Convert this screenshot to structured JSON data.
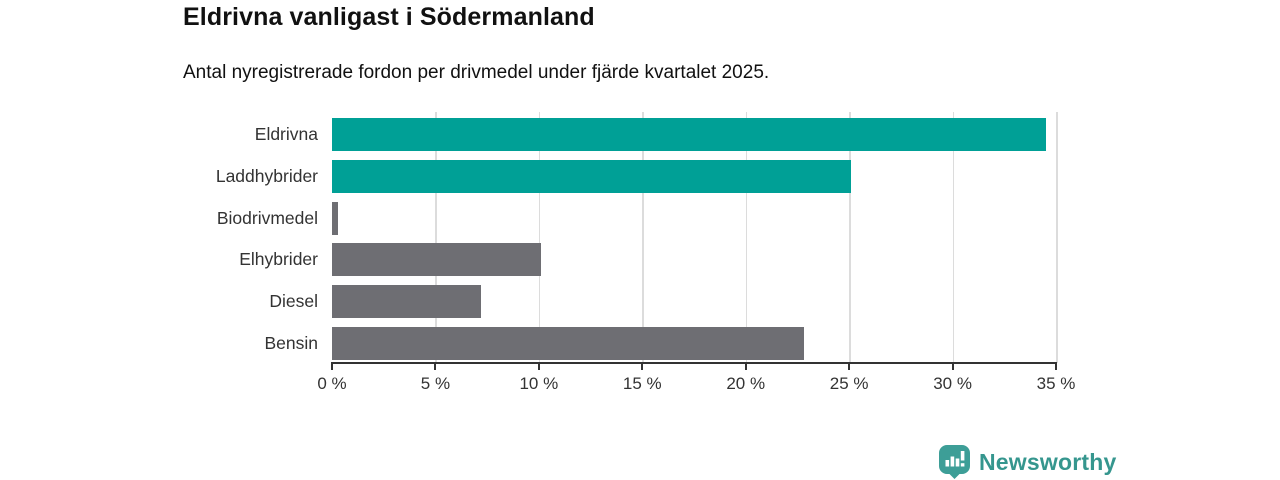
{
  "chart_data": {
    "type": "bar",
    "orientation": "horizontal",
    "title": "Eldrivna vanligast i Södermanland",
    "subtitle": "Antal nyregistrerade fordon per drivmedel under fjärde kvartalet 2025.",
    "categories": [
      "Eldrivna",
      "Laddhybrider",
      "Biodrivmedel",
      "Elhybrider",
      "Diesel",
      "Bensin"
    ],
    "values": [
      34.5,
      25.1,
      0.3,
      10.1,
      7.2,
      22.8
    ],
    "unit": "%",
    "bar_colors": [
      "#00a096",
      "#00a096",
      "#6e6e73",
      "#6e6e73",
      "#6e6e73",
      "#6e6e73"
    ],
    "xlim": [
      0,
      35
    ],
    "x_ticks": [
      0,
      5,
      10,
      15,
      20,
      25,
      30,
      35
    ],
    "x_tick_labels": [
      "0 %",
      "5 %",
      "10 %",
      "15 %",
      "20 %",
      "25 %",
      "30 %",
      "35 %"
    ],
    "grid": "vertical-gridlines-on",
    "legend": "none"
  },
  "branding": {
    "logo_text": "Newsworthy",
    "logo_icon": "bar-chart-speech-bubble"
  },
  "colors": {
    "accent_teal": "#00a096",
    "bar_gray": "#6e6e73",
    "gridline": "#dcdcdc",
    "axis": "#333333",
    "text_dark": "#111111",
    "text_muted": "#333333",
    "logo_teal": "#3d9e97",
    "logo_text_teal": "#35968e",
    "background": "#ffffff"
  }
}
